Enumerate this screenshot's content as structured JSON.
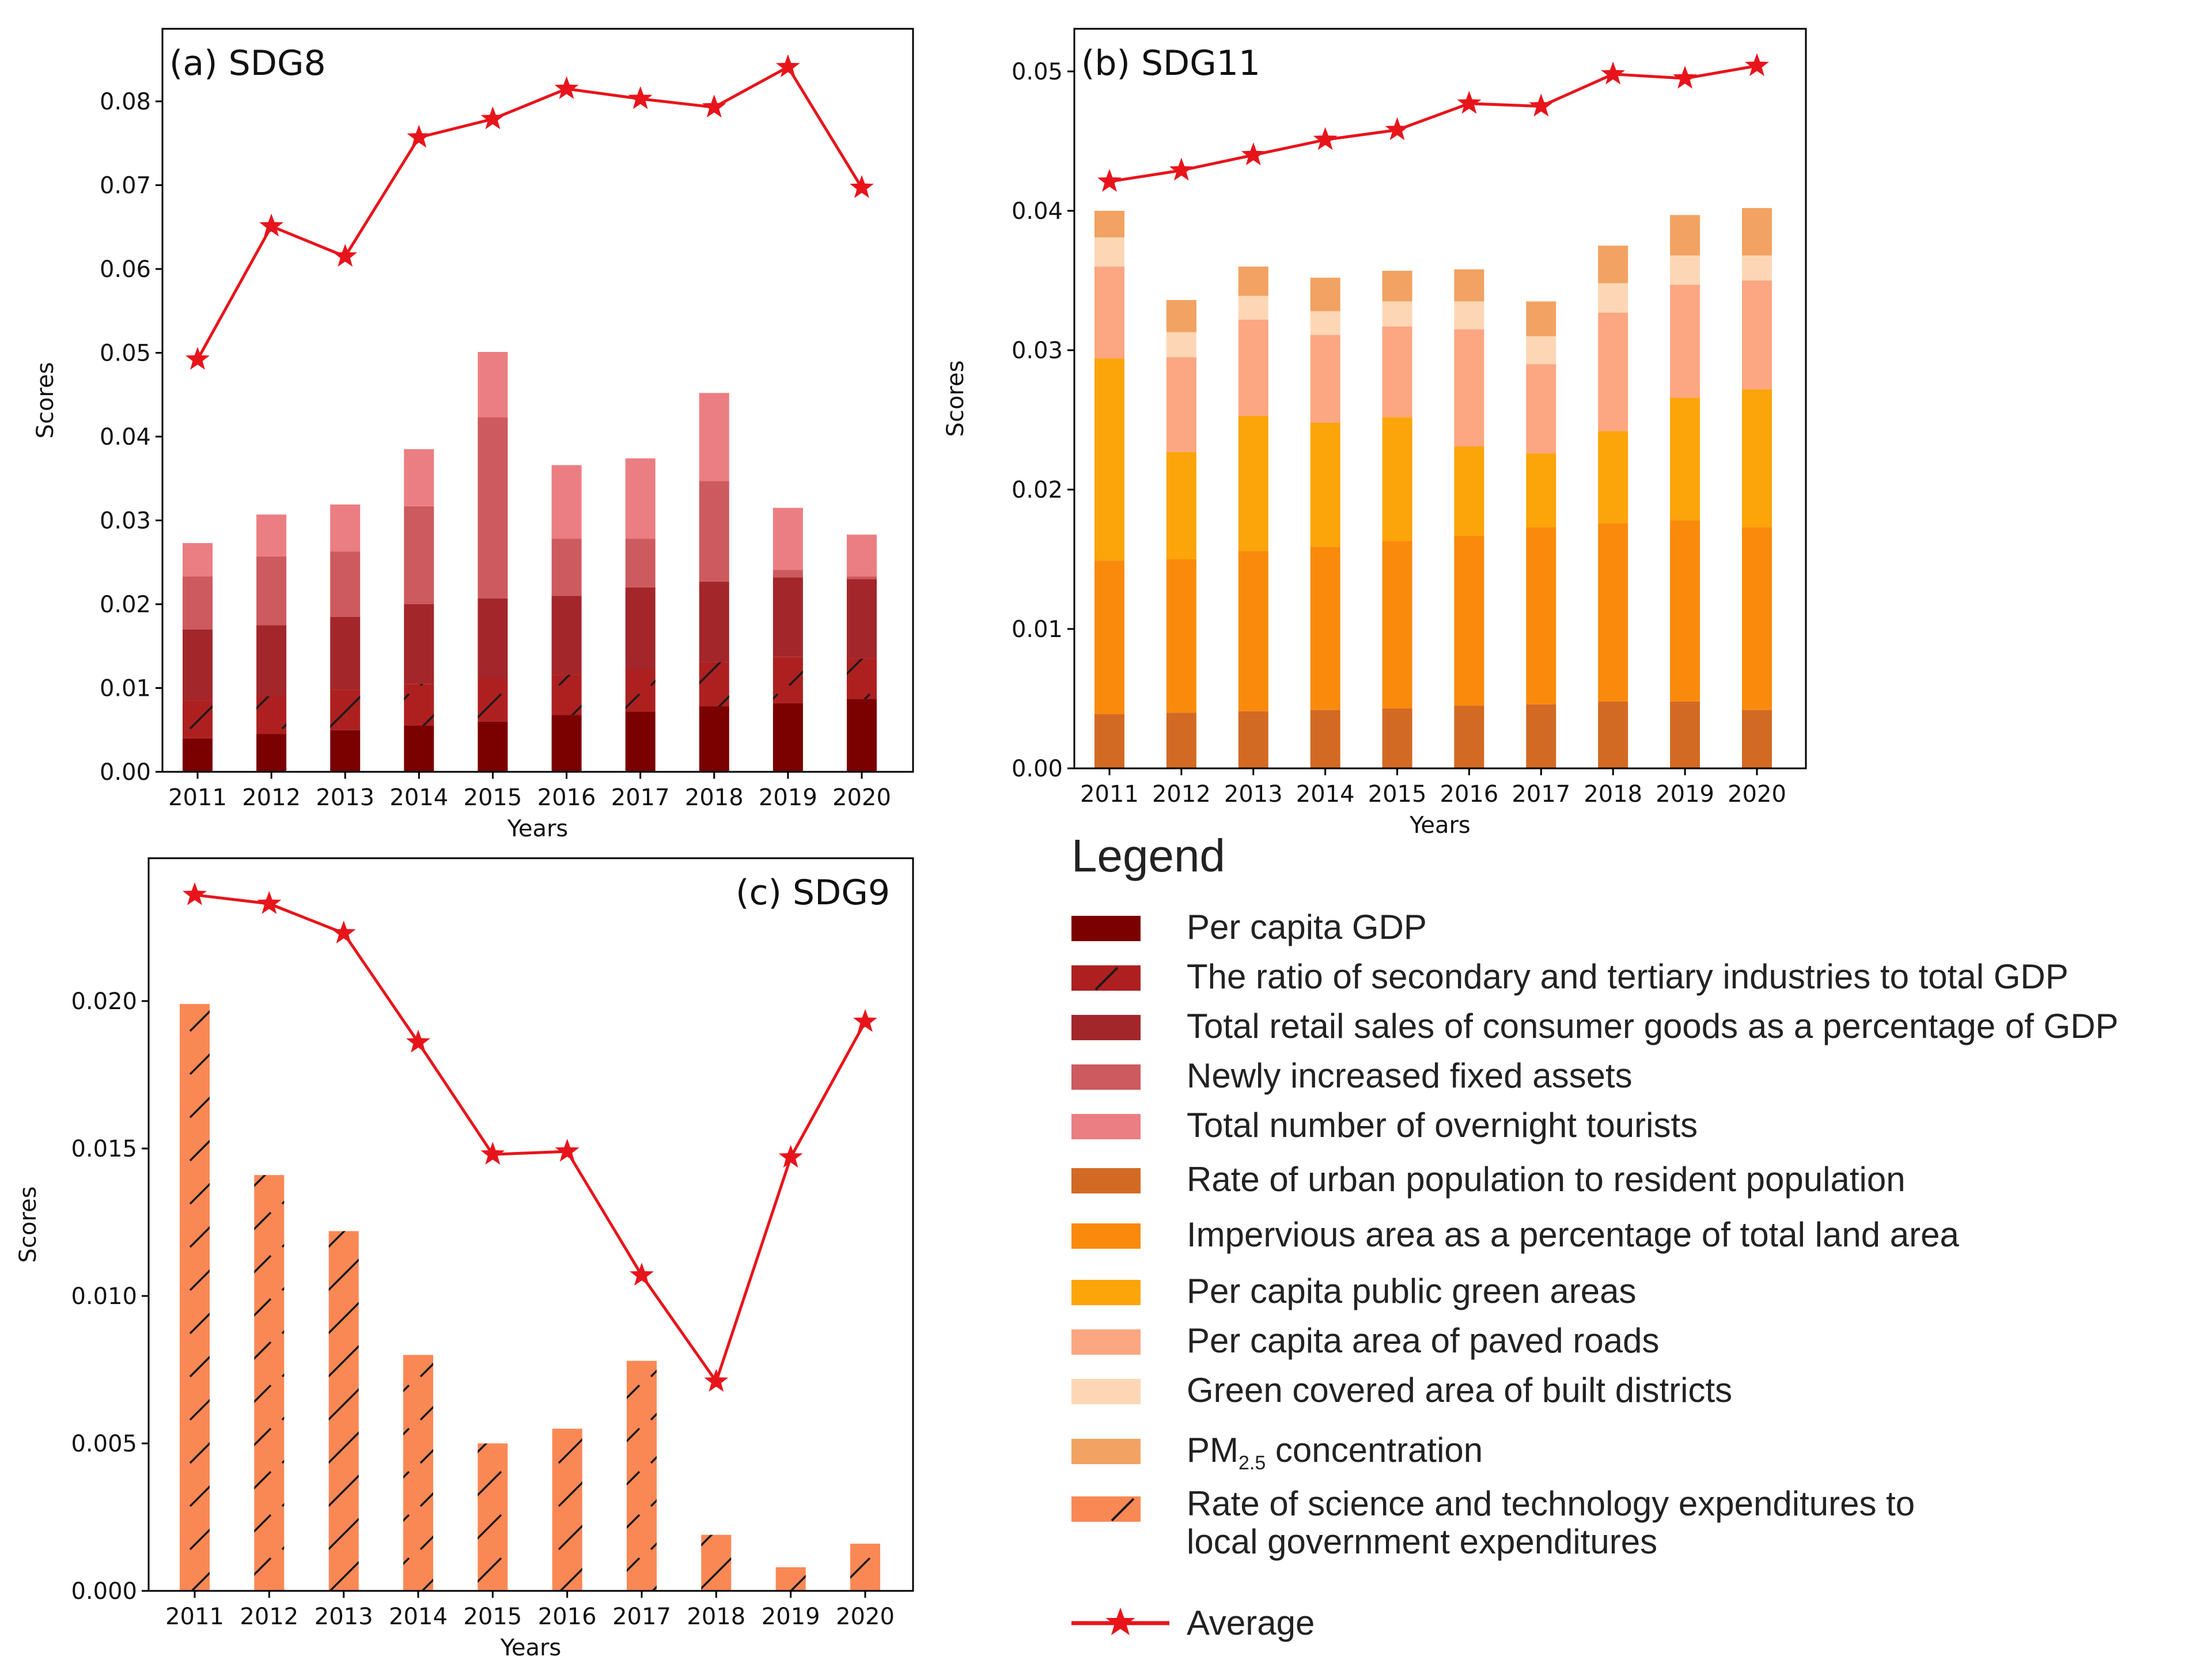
{
  "colors": {
    "avg_line": "#e8141b",
    "sdg8": [
      "#7b0000",
      "#ae2020",
      "#a3262a",
      "#cc5a5e",
      "#eb7e82"
    ],
    "sdg11": [
      "#d26a24",
      "#fa8a0c",
      "#fba50a",
      "#fca682",
      "#fdd7b5",
      "#f2a262"
    ],
    "sdg9": "#fa8855"
  },
  "chart_data": [
    {
      "type": "bar",
      "stacked": true,
      "panel_label": "(a) SDG8",
      "xlabel": "Years",
      "ylabel": "Scores",
      "categories": [
        "2011",
        "2012",
        "2013",
        "2014",
        "2015",
        "2016",
        "2017",
        "2018",
        "2019",
        "2020"
      ],
      "ylim": [
        0,
        0.087
      ],
      "yticks": [
        0.0,
        0.01,
        0.02,
        0.03,
        0.04,
        0.05,
        0.06,
        0.07,
        0.08
      ],
      "ytick_labels": [
        "0.00",
        "0.01",
        "0.02",
        "0.03",
        "0.04",
        "0.05",
        "0.06",
        "0.07",
        "0.08"
      ],
      "series": [
        {
          "name": "Per capita GDP",
          "values": [
            0.004,
            0.0045,
            0.005,
            0.0055,
            0.006,
            0.0068,
            0.0072,
            0.0078,
            0.0082,
            0.0087
          ]
        },
        {
          "name": "The ratio of secondary and tertiary industries to total GDP",
          "hatch": true,
          "values": [
            0.0045,
            0.0045,
            0.0048,
            0.005,
            0.0052,
            0.0048,
            0.005,
            0.0053,
            0.0055,
            0.0048
          ]
        },
        {
          "name": "Total retail sales of consumer goods as a percentage of GDP",
          "values": [
            0.0085,
            0.0085,
            0.0087,
            0.0095,
            0.0095,
            0.0094,
            0.0098,
            0.0096,
            0.0095,
            0.0095
          ]
        },
        {
          "name": "Newly increased fixed assets",
          "values": [
            0.0063,
            0.0082,
            0.0078,
            0.0117,
            0.0216,
            0.0068,
            0.0058,
            0.012,
            0.0009,
            0.0003
          ]
        },
        {
          "name": "Total number of overnight tourists",
          "values": [
            0.004,
            0.005,
            0.0056,
            0.0068,
            0.0078,
            0.0088,
            0.0096,
            0.0105,
            0.0074,
            0.005
          ]
        }
      ],
      "average": {
        "name": "Average",
        "values": [
          0.0492,
          0.0651,
          0.0615,
          0.0757,
          0.0779,
          0.0815,
          0.0803,
          0.0793,
          0.0841,
          0.0697
        ]
      }
    },
    {
      "type": "bar",
      "stacked": true,
      "panel_label": "(b) SDG11",
      "xlabel": "Years",
      "ylabel": "Scores",
      "categories": [
        "2011",
        "2012",
        "2013",
        "2014",
        "2015",
        "2016",
        "2017",
        "2018",
        "2019",
        "2020"
      ],
      "ylim": [
        0,
        0.0535
      ],
      "yticks": [
        0.0,
        0.01,
        0.02,
        0.03,
        0.04,
        0.05
      ],
      "ytick_labels": [
        "0.00",
        "0.01",
        "0.02",
        "0.03",
        "0.04",
        "0.05"
      ],
      "series": [
        {
          "name": "Rate of urban population to resident population",
          "values": [
            0.0039,
            0.004,
            0.0041,
            0.0042,
            0.0043,
            0.0045,
            0.0046,
            0.0048,
            0.0048,
            0.0042
          ]
        },
        {
          "name": "Impervious area as a percentage of total land area",
          "values": [
            0.011,
            0.011,
            0.0115,
            0.0117,
            0.012,
            0.0122,
            0.0127,
            0.0128,
            0.013,
            0.0131
          ]
        },
        {
          "name": "Per capita public green areas",
          "values": [
            0.0145,
            0.0077,
            0.0097,
            0.0089,
            0.0089,
            0.0064,
            0.0053,
            0.0066,
            0.0088,
            0.0099
          ]
        },
        {
          "name": "Per capita area of paved roads",
          "values": [
            0.0066,
            0.0068,
            0.0069,
            0.0063,
            0.0065,
            0.0084,
            0.0064,
            0.0085,
            0.0081,
            0.0078
          ]
        },
        {
          "name": "Green covered area of built districts",
          "values": [
            0.0021,
            0.0018,
            0.0017,
            0.0017,
            0.0018,
            0.002,
            0.002,
            0.0021,
            0.0021,
            0.0018
          ]
        },
        {
          "name": "PM2.5 concentration",
          "values": [
            0.0019,
            0.0023,
            0.0021,
            0.0024,
            0.0022,
            0.0023,
            0.0025,
            0.0027,
            0.0029,
            0.0034
          ]
        }
      ],
      "average": {
        "name": "Average",
        "values": [
          0.0421,
          0.0429,
          0.044,
          0.0451,
          0.0458,
          0.0477,
          0.0475,
          0.0498,
          0.0495,
          0.0504
        ]
      }
    },
    {
      "type": "bar",
      "stacked": false,
      "panel_label": "(c) SDG9",
      "xlabel": "Years",
      "ylabel": "Scores",
      "categories": [
        "2011",
        "2012",
        "2013",
        "2014",
        "2015",
        "2016",
        "2017",
        "2018",
        "2019",
        "2020"
      ],
      "ylim": [
        0,
        0.0245
      ],
      "yticks": [
        0.0,
        0.005,
        0.01,
        0.015,
        0.02
      ],
      "ytick_labels": [
        "0.000",
        "0.005",
        "0.010",
        "0.015",
        "0.020"
      ],
      "series": [
        {
          "name": "Rate of science and technology expenditures to local government expenditures",
          "hatch": true,
          "values": [
            0.0199,
            0.0141,
            0.0122,
            0.008,
            0.005,
            0.0055,
            0.0078,
            0.0019,
            0.0008,
            0.0016
          ]
        }
      ],
      "average": {
        "name": "Average",
        "values": [
          0.0236,
          0.0233,
          0.0223,
          0.0186,
          0.0148,
          0.0149,
          0.0107,
          0.0071,
          0.0147,
          0.0193
        ]
      }
    }
  ],
  "legend": {
    "title": "Legend",
    "items": [
      {
        "label": "Per capita GDP",
        "color": "#7b0000",
        "hatch": false
      },
      {
        "label": "The ratio of secondary and tertiary industries to total GDP",
        "color": "#ae2020",
        "hatch": true
      },
      {
        "label": "Total retail sales of consumer goods as a percentage of GDP",
        "color": "#a3262a",
        "hatch": false
      },
      {
        "label": "Newly increased fixed assets",
        "color": "#cc5a5e",
        "hatch": false
      },
      {
        "label": "Total number of overnight tourists",
        "color": "#eb7e82",
        "hatch": false
      },
      {
        "label": "Rate of urban population to resident population",
        "color": "#d26a24",
        "hatch": false
      },
      {
        "label": "Impervious area as a percentage of total land area",
        "color": "#fa8a0c",
        "hatch": false
      },
      {
        "label": "Per capita public green areas",
        "color": "#fba50a",
        "hatch": false
      },
      {
        "label": "Per capita area of paved roads",
        "color": "#fca682",
        "hatch": false
      },
      {
        "label": "Green covered area of built districts",
        "color": "#fdd7b5",
        "hatch": false
      },
      {
        "pm_prefix": "PM",
        "pm_sub": "2.5",
        "pm_suffix": " concentration",
        "color": "#f2a262",
        "hatch": false
      },
      {
        "label_line1": "Rate of science and technology expenditures to",
        "label_line2": "local government expenditures",
        "color": "#fa8855",
        "hatch": true
      }
    ],
    "average_label": "Average"
  }
}
